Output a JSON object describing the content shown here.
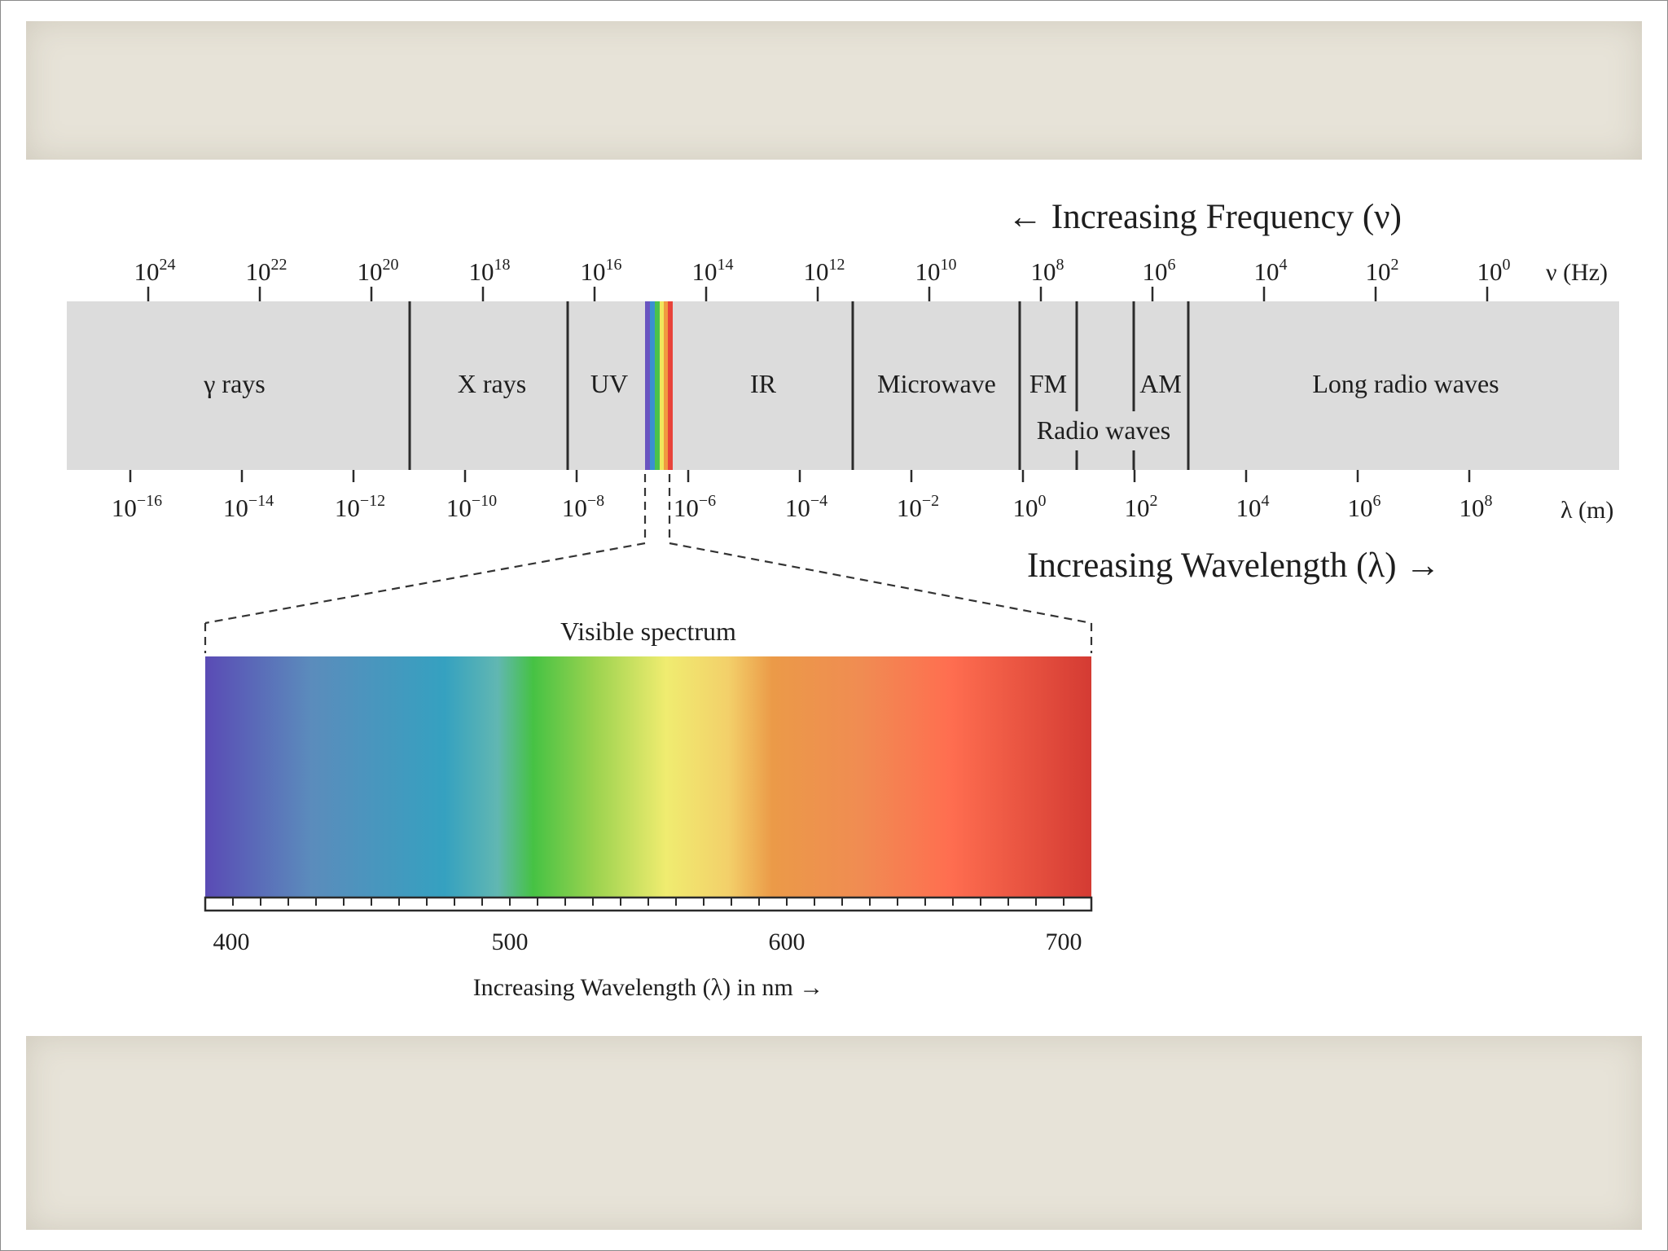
{
  "frequency_axis": {
    "heading": "← Increasing Frequency (ν)",
    "unit": "ν (Hz)",
    "ticks": [
      {
        "base": "10",
        "exp": "24"
      },
      {
        "base": "10",
        "exp": "22"
      },
      {
        "base": "10",
        "exp": "20"
      },
      {
        "base": "10",
        "exp": "18"
      },
      {
        "base": "10",
        "exp": "16"
      },
      {
        "base": "10",
        "exp": "14"
      },
      {
        "base": "10",
        "exp": "12"
      },
      {
        "base": "10",
        "exp": "10"
      },
      {
        "base": "10",
        "exp": "8"
      },
      {
        "base": "10",
        "exp": "6"
      },
      {
        "base": "10",
        "exp": "4"
      },
      {
        "base": "10",
        "exp": "2"
      },
      {
        "base": "10",
        "exp": "0"
      }
    ]
  },
  "wavelength_axis": {
    "heading": "Increasing Wavelength (λ) →",
    "unit": "λ (m)",
    "ticks": [
      {
        "base": "10",
        "exp": "−16"
      },
      {
        "base": "10",
        "exp": "−14"
      },
      {
        "base": "10",
        "exp": "−12"
      },
      {
        "base": "10",
        "exp": "−10"
      },
      {
        "base": "10",
        "exp": "−8"
      },
      {
        "base": "10",
        "exp": "−6"
      },
      {
        "base": "10",
        "exp": "−4"
      },
      {
        "base": "10",
        "exp": "−2"
      },
      {
        "base": "10",
        "exp": "0"
      },
      {
        "base": "10",
        "exp": "2"
      },
      {
        "base": "10",
        "exp": "4"
      },
      {
        "base": "10",
        "exp": "6"
      },
      {
        "base": "10",
        "exp": "8"
      }
    ]
  },
  "bands": {
    "gamma": "γ rays",
    "xray": "X rays",
    "uv": "UV",
    "ir": "IR",
    "microwave": "Microwave",
    "fm": "FM",
    "am": "AM",
    "long_radio": "Long radio waves",
    "radio": "Radio waves"
  },
  "visible": {
    "title": "Visible spectrum",
    "ticks": [
      "400",
      "500",
      "600",
      "700"
    ],
    "caption": "Increasing Wavelength (λ) in nm →"
  },
  "colors": {
    "band_fill": "#dcdcdc",
    "violet": "#5a4bb5",
    "blue": "#3a9ec2",
    "green": "#46c244",
    "yellow": "#f0ec70",
    "orange": "#eb9a48",
    "red": "#ff6e50",
    "deep_red": "#d43b33"
  }
}
